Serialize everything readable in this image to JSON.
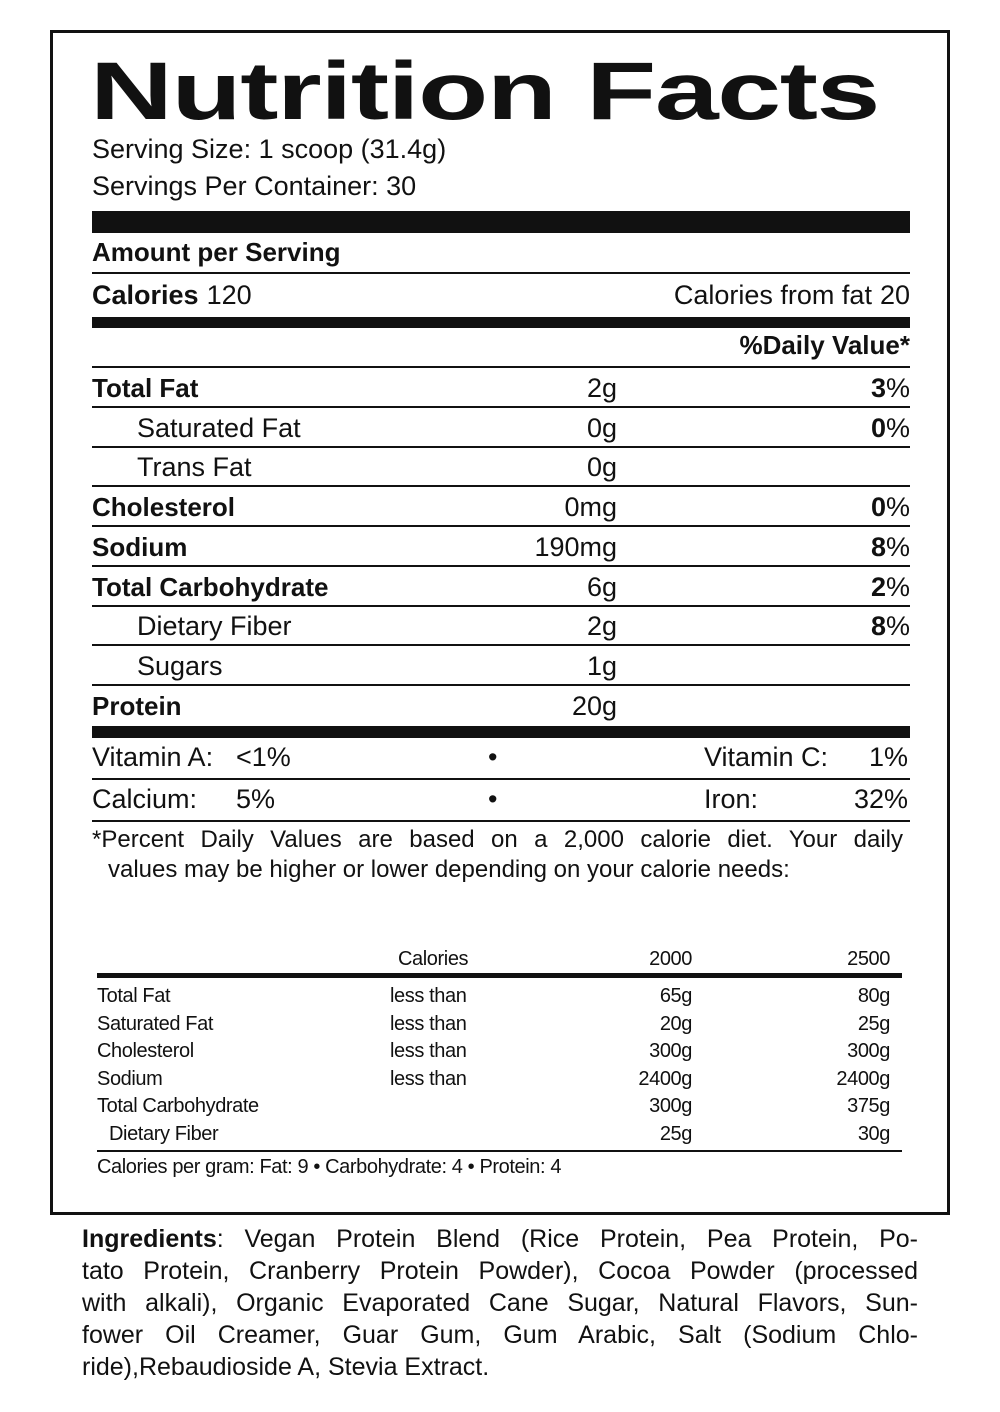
{
  "title": "Nutrition Facts",
  "serving_size": "Serving Size: 1 scoop (31.4g)",
  "servings_per_container": "Servings Per Container: 30",
  "amount_per_serving": "Amount per Serving",
  "calories": {
    "label": "Calories",
    "value": "120"
  },
  "calories_from_fat": {
    "label": "Calories from fat",
    "value": "20"
  },
  "daily_value_header": "%Daily Value*",
  "nutrients": [
    {
      "name": "Total Fat",
      "amount": "2g",
      "dv": {
        "number": "3",
        "sign": "%"
      },
      "sub": [
        {
          "name": "Saturated Fat",
          "amount": "0g",
          "dv": {
            "number": "0",
            "sign": "%"
          }
        },
        {
          "name": "Trans Fat",
          "amount": "0g"
        }
      ]
    },
    {
      "name": "Cholesterol",
      "amount": "0mg",
      "dv": {
        "number": "0",
        "sign": "%"
      }
    },
    {
      "name": "Sodium",
      "amount": "190mg",
      "dv": {
        "number": "8",
        "sign": "%"
      }
    },
    {
      "name": "Total Carbohydrate",
      "amount": "6g",
      "dv": {
        "number": "2",
        "sign": "%"
      },
      "sub": [
        {
          "name": "Dietary Fiber",
          "amount": "2g",
          "dv": {
            "number": "8",
            "sign": "%"
          }
        },
        {
          "name": "Sugars",
          "amount": "1g"
        }
      ]
    },
    {
      "name": "Protein",
      "amount": "20g"
    }
  ],
  "vitamins": [
    {
      "left": {
        "label": "Vitamin A:",
        "value": "<1%"
      },
      "separator": "•",
      "right": {
        "label": "Vitamin C:",
        "value": "1%"
      }
    },
    {
      "left": {
        "label": "Calcium:",
        "value": "5%"
      },
      "separator": "•",
      "right": {
        "label": "Iron:",
        "value": "32%"
      }
    }
  ],
  "footnote": [
    "*Percent Daily Values are based on a 2,000 calorie diet. Your daily",
    "values may be higher or lower depending on your calorie needs:"
  ],
  "reference_table": {
    "header": [
      "Calories",
      "2000",
      "2500"
    ],
    "rows": [
      {
        "name": "Total Fat",
        "limit": "less than",
        "values": [
          "65g",
          "80g"
        ]
      },
      {
        "name": "Saturated Fat",
        "limit": "less than",
        "values": [
          "20g",
          "25g"
        ]
      },
      {
        "name": "Cholesterol",
        "limit": "less than",
        "values": [
          "300g",
          "300g"
        ]
      },
      {
        "name": "Sodium",
        "limit": "less than",
        "values": [
          "2400g",
          "2400g"
        ]
      },
      {
        "name": "Total Carbohydrate",
        "values": [
          "300g",
          "375g"
        ],
        "sub": [
          {
            "name": "Dietary Fiber",
            "values": [
              "25g",
              "30g"
            ]
          }
        ]
      }
    ],
    "footer": "Calories per gram: Fat: 9 • Carbohydrate: 4 • Protein: 4"
  },
  "ingredients": {
    "label": "Ingredients",
    "lines": [
      ": Vegan Protein Blend (Rice Protein, Pea Protein, Po-",
      "tato Protein, Cranberry Protein Powder), Cocoa Powder (processed",
      "with alkali), Organic Evaporated Cane Sugar, Natural Flavors, Sun-",
      "fower Oil Creamer, Guar Gum, Gum Arabic, Salt (Sodium Chlo-",
      "ride),Rebaudioside A, Stevia Extract."
    ]
  }
}
